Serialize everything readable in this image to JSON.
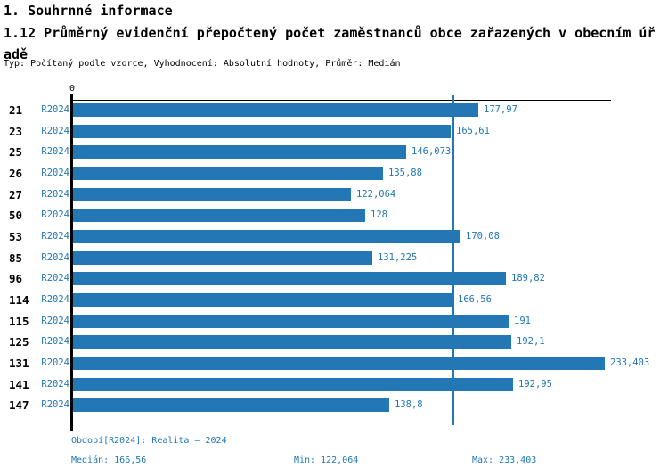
{
  "header": {
    "title": "1. Souhrnné informace",
    "subtitle": "1.12 Průměrný evidenční přepočtený počet zaměstnanců obce zařazených v obecním úřadě",
    "meta": "Typ: Počítaný podle vzorce, Vyhodnocení: Absolutní hodnoty, Průměr: Medián"
  },
  "axis": {
    "origin_label": "0"
  },
  "chart_data": {
    "type": "bar",
    "orientation": "horizontal",
    "title": "1.12 Průměrný evidenční přepočtený počet zaměstnanců obce zařazených v obecním úřadě",
    "categories": [
      "21",
      "23",
      "25",
      "26",
      "27",
      "50",
      "53",
      "85",
      "96",
      "114",
      "115",
      "125",
      "131",
      "141",
      "147"
    ],
    "series": [
      {
        "name": "R2024",
        "values": [
          177.97,
          165.61,
          146.073,
          135.88,
          122.064,
          128,
          170.08,
          131.225,
          189.82,
          166.56,
          191,
          192.1,
          233.403,
          192.95,
          138.8
        ],
        "value_labels": [
          "177,97",
          "165,61",
          "146,073",
          "135,88",
          "122,064",
          "128",
          "170,08",
          "131,225",
          "189,82",
          "166,56",
          "191",
          "192,1",
          "233,403",
          "192,95",
          "138,8"
        ]
      }
    ],
    "median": 166.56,
    "xlim": [
      0,
      236
    ],
    "grid": false,
    "legend_position": "none",
    "median_line": true
  },
  "footer": {
    "period": "Období[R2024]: Realita – 2024",
    "median": "Medián: 166,56",
    "min": "Min: 122,064",
    "max": "Max: 233,403"
  },
  "colors": {
    "bar": "#2277b4",
    "label_blue": "#2277b4",
    "axis": "#000000",
    "median_line": "#2277b4"
  }
}
